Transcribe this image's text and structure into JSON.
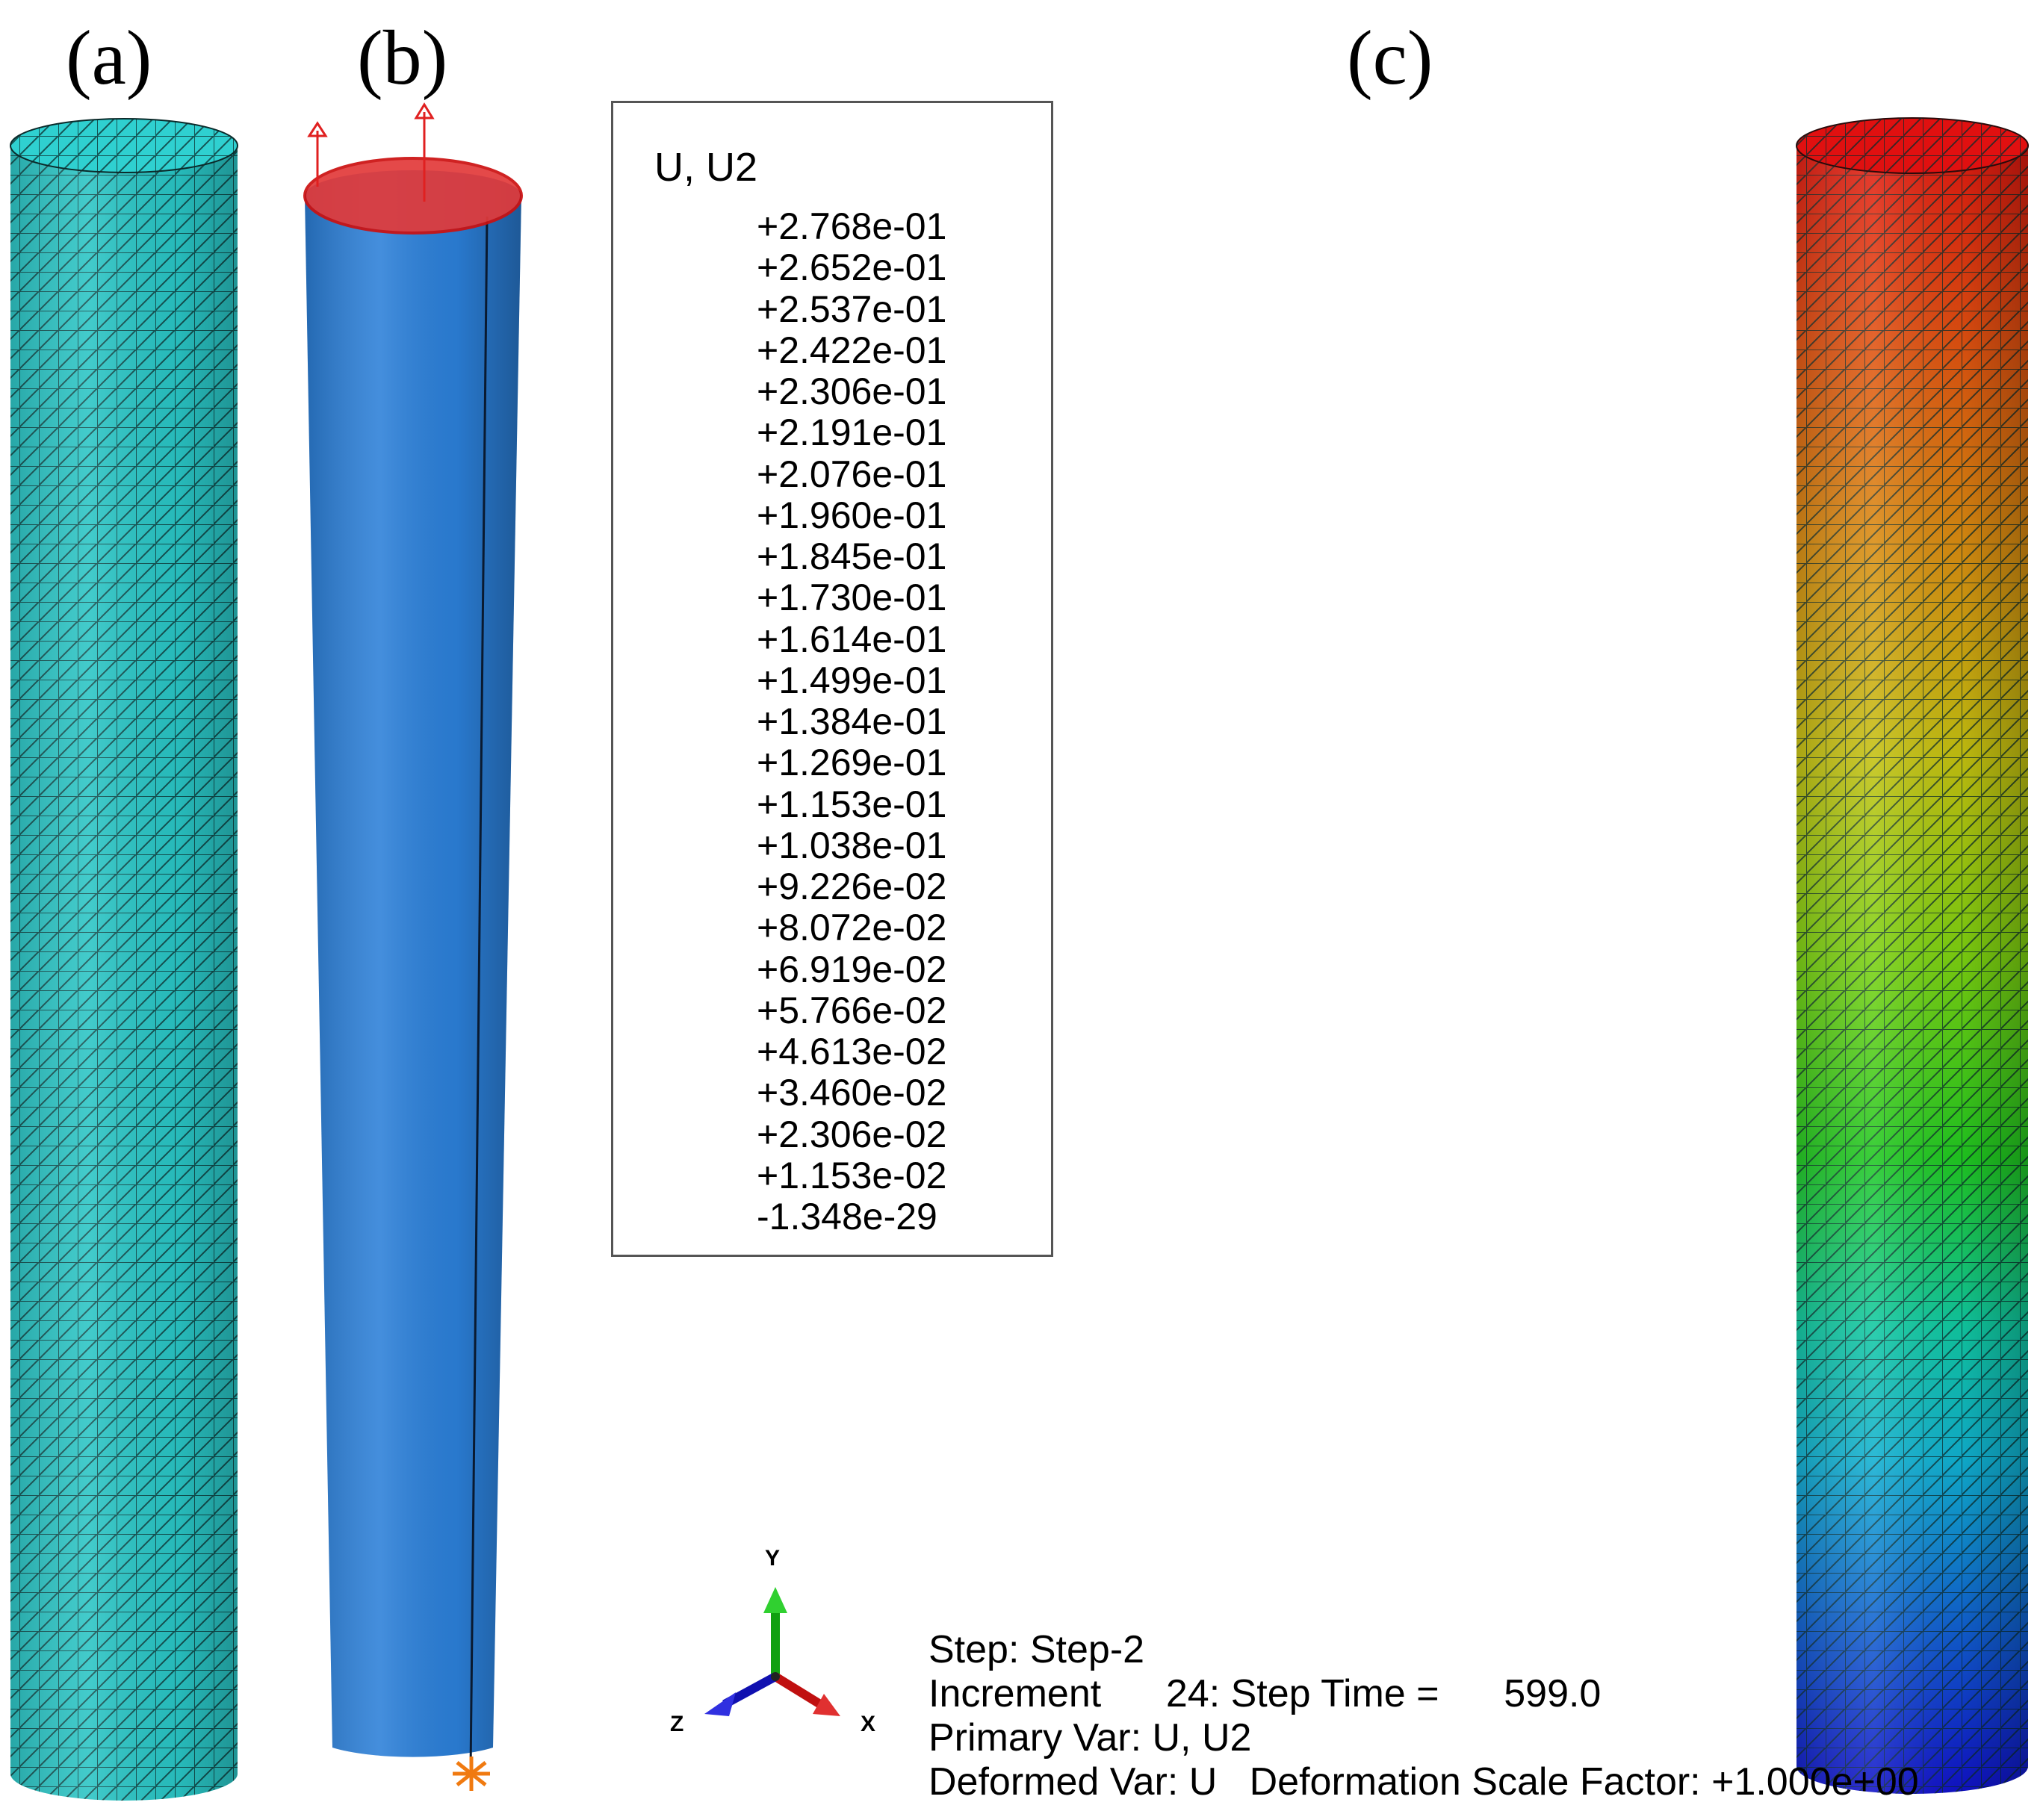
{
  "panels": {
    "a_label": "(a)",
    "b_label": "(b)",
    "c_label": "(c)"
  },
  "legend": {
    "title": "U, U2",
    "values": [
      "+2.768e-01",
      "+2.652e-01",
      "+2.537e-01",
      "+2.422e-01",
      "+2.306e-01",
      "+2.191e-01",
      "+2.076e-01",
      "+1.960e-01",
      "+1.845e-01",
      "+1.730e-01",
      "+1.614e-01",
      "+1.499e-01",
      "+1.384e-01",
      "+1.269e-01",
      "+1.153e-01",
      "+1.038e-01",
      "+9.226e-02",
      "+8.072e-02",
      "+6.919e-02",
      "+5.766e-02",
      "+4.613e-02",
      "+3.460e-02",
      "+2.306e-02",
      "+1.153e-02",
      "-1.348e-29"
    ],
    "colors": [
      "#ff0000",
      "#ff2a00",
      "#ff5400",
      "#ff7e00",
      "#ffa800",
      "#ffcc00",
      "#ffee00",
      "#eeff00",
      "#c4ff00",
      "#9aff00",
      "#70ff00",
      "#46ff00",
      "#1cff00",
      "#00ff32",
      "#00ff6e",
      "#00ffa0",
      "#00ffd2",
      "#00eeff",
      "#00c4ff",
      "#009aff",
      "#0070ff",
      "#0046ff",
      "#001cff",
      "#0000ff"
    ]
  },
  "axes": {
    "y": "Y",
    "z": "Z",
    "x": "X"
  },
  "step_info": {
    "step": "Step: Step-2",
    "increment": "Increment      24: Step Time =      599.0",
    "primary_var": "Primary Var: U, U2",
    "deformed_var": "Deformed Var: U   Deformation Scale Factor: +1.000e+00"
  },
  "colors": {
    "mesh_cyan": "#29c4c4",
    "model_blue": "#2b7fd8",
    "load_red": "#e23a3a",
    "bc_orange": "#f07a10"
  }
}
